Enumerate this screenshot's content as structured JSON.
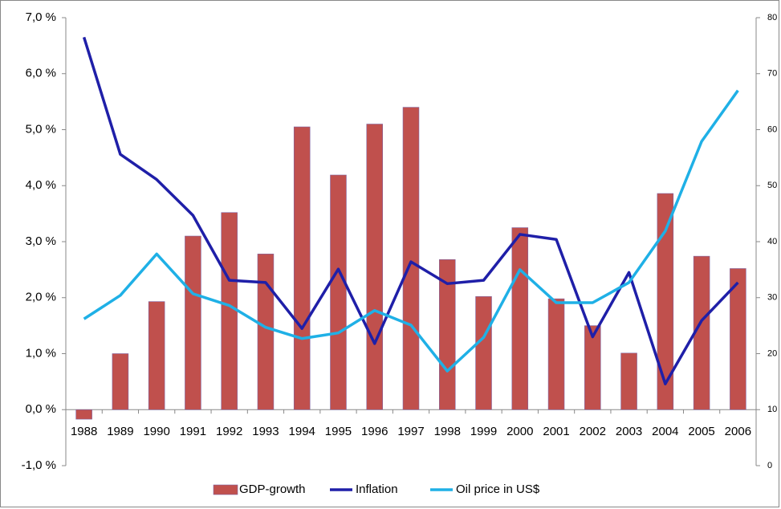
{
  "chart_data": {
    "type": "bar",
    "categories": [
      "1988",
      "1989",
      "1990",
      "1991",
      "1992",
      "1993",
      "1994",
      "1995",
      "1996",
      "1997",
      "1998",
      "1999",
      "2000",
      "2001",
      "2002",
      "2003",
      "2004",
      "2005",
      "2006"
    ],
    "series": [
      {
        "name": "GDP-growth",
        "type": "bar",
        "color": "#c0504d",
        "values": [
          -0.17,
          1.0,
          1.93,
          3.1,
          3.52,
          2.78,
          5.05,
          4.19,
          5.1,
          5.4,
          2.68,
          2.02,
          3.25,
          1.98,
          1.5,
          1.01,
          3.86,
          2.74,
          2.52
        ]
      },
      {
        "name": "Inflation",
        "type": "line",
        "color": "#1f1fa8",
        "values": [
          6.65,
          4.56,
          4.11,
          3.47,
          2.31,
          2.27,
          1.45,
          2.51,
          1.18,
          2.64,
          2.25,
          2.31,
          3.13,
          3.04,
          1.3,
          2.45,
          0.46,
          1.59,
          2.27
        ]
      },
      {
        "name": "Oil price in US$",
        "type": "line",
        "color": "#1fb0e6",
        "axis": "y2",
        "values": [
          26.2,
          30.4,
          37.8,
          30.7,
          28.6,
          24.7,
          22.7,
          23.7,
          27.7,
          25.1,
          16.9,
          22.9,
          35.0,
          29.1,
          29.1,
          32.7,
          41.9,
          57.9,
          67.0
        ]
      }
    ],
    "ylim": [
      -1,
      7
    ],
    "yticks": [
      {
        "value": -1,
        "label": "-1,0 %"
      },
      {
        "value": 0,
        "label": "0,0 %"
      },
      {
        "value": 1,
        "label": "1,0 %"
      },
      {
        "value": 2,
        "label": "2,0 %"
      },
      {
        "value": 3,
        "label": "3,0 %"
      },
      {
        "value": 4,
        "label": "4,0 %"
      },
      {
        "value": 5,
        "label": "5,0 %"
      },
      {
        "value": 6,
        "label": "6,0 %"
      },
      {
        "value": 7,
        "label": "7,0 %"
      }
    ],
    "y2lim": [
      0,
      80
    ],
    "y2ticks": [
      0,
      10,
      20,
      30,
      40,
      50,
      60,
      70,
      80
    ],
    "legend": "bottom"
  }
}
